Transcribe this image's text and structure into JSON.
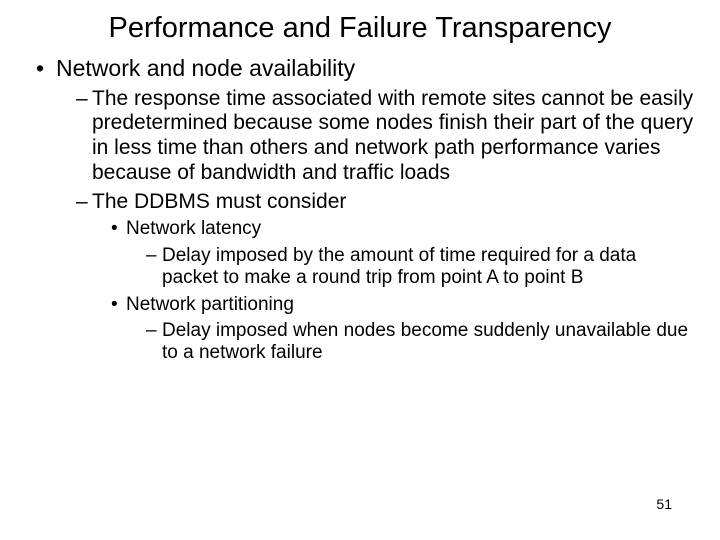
{
  "title": "Performance and Failure Transparency",
  "bullets": {
    "b1": "Network and node availability",
    "b1_1": "The response time associated with remote sites cannot be easily predetermined because some nodes finish their part of the query in less time than others and network path performance varies because of bandwidth and traffic loads",
    "b1_2": "The DDBMS must consider",
    "b1_2_1": "Network latency",
    "b1_2_1_1": "Delay imposed by the amount of time required for a data packet to make a round trip from point A to point B",
    "b1_2_2": "Network partitioning",
    "b1_2_2_1": "Delay imposed when nodes become suddenly unavailable due to a network failure"
  },
  "pageNumber": "51",
  "style": {
    "background": "#ffffff",
    "text_color": "#000000",
    "font_family": "Arial",
    "title_fontsize": 29,
    "lvl1_fontsize": 23,
    "lvl2_fontsize": 21,
    "lvl3_fontsize": 19,
    "lvl4_fontsize": 19,
    "pagenum_fontsize": 14
  }
}
